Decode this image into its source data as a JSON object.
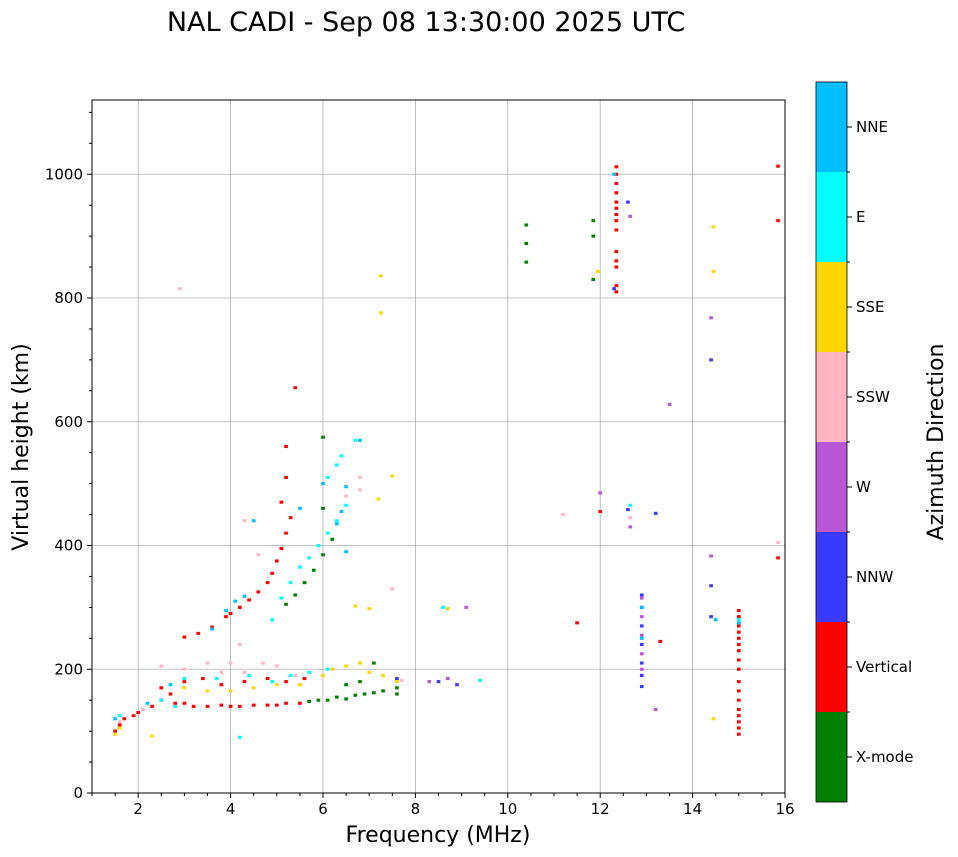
{
  "chart_data": {
    "type": "scatter",
    "title": "NAL CADI - Sep 08 13:30:00 2025 UTC",
    "xlabel": "Frequency (MHz)",
    "ylabel": "Virtual height (km)",
    "xlim": [
      1,
      16
    ],
    "ylim": [
      0,
      1120
    ],
    "xticks": [
      2,
      4,
      6,
      8,
      10,
      12,
      14,
      16
    ],
    "xtick_labels": [
      "2",
      "4",
      "6",
      "8",
      "10",
      "12",
      "14",
      "16"
    ],
    "yticks": [
      0,
      200,
      400,
      600,
      800,
      1000
    ],
    "ytick_labels": [
      "0",
      "200",
      "400",
      "600",
      "800",
      "1000"
    ],
    "grid": true,
    "colorbar": {
      "title": "Azimuth Direction",
      "categories": [
        "X-mode",
        "Vertical",
        "NNW",
        "W",
        "SSW",
        "SSE",
        "E",
        "NNE"
      ],
      "colors": [
        "#008000",
        "#ff0000",
        "#3a3aff",
        "#b857d6",
        "#ffb6c1",
        "#ffd700",
        "#00ffff",
        "#00bfff"
      ]
    },
    "point_size_data": {
      "freq_mhz": 0.08,
      "height_km": 5
    },
    "series": [
      {
        "name": "Vertical",
        "points": [
          [
            1.5,
            100
          ],
          [
            1.6,
            110
          ],
          [
            1.7,
            120
          ],
          [
            1.9,
            125
          ],
          [
            2.0,
            130
          ],
          [
            2.3,
            140
          ],
          [
            2.5,
            150
          ],
          [
            2.7,
            160
          ],
          [
            2.8,
            145
          ],
          [
            3.0,
            145
          ],
          [
            3.2,
            140
          ],
          [
            3.5,
            140
          ],
          [
            3.8,
            142
          ],
          [
            4.0,
            140
          ],
          [
            4.2,
            140
          ],
          [
            4.5,
            142
          ],
          [
            4.8,
            142
          ],
          [
            5.0,
            142
          ],
          [
            5.2,
            145
          ],
          [
            5.5,
            145
          ],
          [
            2.5,
            170
          ],
          [
            3.0,
            180
          ],
          [
            3.4,
            185
          ],
          [
            3.8,
            175
          ],
          [
            4.3,
            180
          ],
          [
            4.8,
            185
          ],
          [
            5.2,
            180
          ],
          [
            5.6,
            185
          ],
          [
            3.0,
            252
          ],
          [
            3.3,
            258
          ],
          [
            3.6,
            268
          ],
          [
            3.9,
            285
          ],
          [
            4.0,
            290
          ],
          [
            4.2,
            300
          ],
          [
            4.4,
            312
          ],
          [
            4.6,
            325
          ],
          [
            4.8,
            340
          ],
          [
            4.9,
            355
          ],
          [
            5.0,
            375
          ],
          [
            5.1,
            395
          ],
          [
            5.2,
            420
          ],
          [
            5.3,
            445
          ],
          [
            5.1,
            470
          ],
          [
            5.2,
            510
          ],
          [
            5.2,
            560
          ],
          [
            5.4,
            655
          ],
          [
            11.5,
            275
          ],
          [
            12.0,
            455
          ],
          [
            13.3,
            245
          ],
          [
            12.35,
            810
          ],
          [
            12.35,
            820
          ],
          [
            12.35,
            850
          ],
          [
            12.35,
            860
          ],
          [
            12.35,
            875
          ],
          [
            12.35,
            910
          ],
          [
            12.35,
            925
          ],
          [
            12.35,
            935
          ],
          [
            12.35,
            945
          ],
          [
            12.35,
            955
          ],
          [
            12.35,
            970
          ],
          [
            12.35,
            985
          ],
          [
            12.35,
            1000
          ],
          [
            12.35,
            1012
          ],
          [
            15.0,
            95
          ],
          [
            15.0,
            105
          ],
          [
            15.0,
            115
          ],
          [
            15.0,
            125
          ],
          [
            15.0,
            135
          ],
          [
            15.0,
            150
          ],
          [
            15.0,
            165
          ],
          [
            15.0,
            180
          ],
          [
            15.0,
            200
          ],
          [
            15.0,
            215
          ],
          [
            15.0,
            230
          ],
          [
            15.0,
            240
          ],
          [
            15.0,
            250
          ],
          [
            15.0,
            260
          ],
          [
            15.0,
            270
          ],
          [
            15.0,
            285
          ],
          [
            15.0,
            295
          ],
          [
            15.85,
            380
          ],
          [
            15.85,
            925
          ],
          [
            15.85,
            1013
          ]
        ]
      },
      {
        "name": "X-mode",
        "points": [
          [
            5.7,
            148
          ],
          [
            5.9,
            150
          ],
          [
            6.1,
            150
          ],
          [
            6.3,
            155
          ],
          [
            6.5,
            152
          ],
          [
            6.7,
            158
          ],
          [
            6.9,
            160
          ],
          [
            7.1,
            162
          ],
          [
            7.3,
            165
          ],
          [
            7.6,
            170
          ],
          [
            7.6,
            160
          ],
          [
            7.1,
            210
          ],
          [
            6.5,
            175
          ],
          [
            6.8,
            180
          ],
          [
            5.2,
            305
          ],
          [
            5.4,
            320
          ],
          [
            5.6,
            340
          ],
          [
            5.8,
            360
          ],
          [
            6.0,
            385
          ],
          [
            6.2,
            410
          ],
          [
            6.0,
            460
          ],
          [
            6.0,
            575
          ],
          [
            10.4,
            858
          ],
          [
            10.4,
            888
          ],
          [
            10.4,
            918
          ],
          [
            11.85,
            830
          ],
          [
            11.85,
            900
          ],
          [
            11.85,
            925
          ]
        ]
      },
      {
        "name": "NNW",
        "points": [
          [
            7.6,
            185
          ],
          [
            8.5,
            180
          ],
          [
            8.9,
            175
          ],
          [
            12.3,
            815
          ],
          [
            12.6,
            955
          ],
          [
            12.6,
            458
          ],
          [
            12.9,
            172
          ],
          [
            12.9,
            190
          ],
          [
            12.9,
            210
          ],
          [
            12.9,
            240
          ],
          [
            12.9,
            270
          ],
          [
            12.9,
            300
          ],
          [
            12.9,
            320
          ],
          [
            13.2,
            452
          ],
          [
            14.4,
            285
          ],
          [
            14.4,
            335
          ],
          [
            14.4,
            700
          ]
        ]
      },
      {
        "name": "W",
        "points": [
          [
            8.3,
            180
          ],
          [
            8.7,
            185
          ],
          [
            9.1,
            300
          ],
          [
            12.0,
            485
          ],
          [
            12.65,
            430
          ],
          [
            12.65,
            932
          ],
          [
            12.9,
            200
          ],
          [
            12.9,
            225
          ],
          [
            12.9,
            255
          ],
          [
            12.9,
            285
          ],
          [
            12.9,
            315
          ],
          [
            13.2,
            135
          ],
          [
            13.5,
            628
          ],
          [
            14.4,
            383
          ],
          [
            14.4,
            768
          ]
        ]
      },
      {
        "name": "SSW",
        "points": [
          [
            1.6,
            115
          ],
          [
            2.1,
            135
          ],
          [
            2.5,
            205
          ],
          [
            3.0,
            200
          ],
          [
            3.5,
            210
          ],
          [
            3.8,
            195
          ],
          [
            4.0,
            210
          ],
          [
            4.3,
            195
          ],
          [
            4.7,
            210
          ],
          [
            5.0,
            205
          ],
          [
            5.4,
            190
          ],
          [
            4.3,
            440
          ],
          [
            4.6,
            385
          ],
          [
            4.2,
            240
          ],
          [
            6.5,
            480
          ],
          [
            6.8,
            490
          ],
          [
            6.8,
            510
          ],
          [
            7.5,
            330
          ],
          [
            7.7,
            182
          ],
          [
            2.9,
            815
          ],
          [
            11.2,
            450
          ],
          [
            12.65,
            445
          ],
          [
            15.85,
            405
          ]
        ]
      },
      {
        "name": "SSE",
        "points": [
          [
            1.5,
            95
          ],
          [
            1.6,
            105
          ],
          [
            2.3,
            92
          ],
          [
            3.0,
            170
          ],
          [
            3.5,
            165
          ],
          [
            4.0,
            165
          ],
          [
            4.5,
            170
          ],
          [
            5.0,
            175
          ],
          [
            5.5,
            175
          ],
          [
            6.0,
            190
          ],
          [
            6.2,
            200
          ],
          [
            6.5,
            205
          ],
          [
            6.8,
            210
          ],
          [
            7.0,
            195
          ],
          [
            7.3,
            190
          ],
          [
            7.6,
            180
          ],
          [
            6.7,
            302
          ],
          [
            7.0,
            298
          ],
          [
            8.7,
            298
          ],
          [
            7.2,
            475
          ],
          [
            7.5,
            512
          ],
          [
            7.25,
            776
          ],
          [
            7.25,
            836
          ],
          [
            11.95,
            843
          ],
          [
            14.45,
            120
          ],
          [
            14.45,
            843
          ],
          [
            14.45,
            915
          ]
        ]
      },
      {
        "name": "E",
        "points": [
          [
            1.6,
            125
          ],
          [
            2.5,
            150
          ],
          [
            2.8,
            140
          ],
          [
            3.0,
            185
          ],
          [
            3.7,
            185
          ],
          [
            4.4,
            190
          ],
          [
            4.9,
            180
          ],
          [
            5.3,
            190
          ],
          [
            5.7,
            195
          ],
          [
            6.1,
            200
          ],
          [
            4.2,
            90
          ],
          [
            4.9,
            280
          ],
          [
            5.1,
            315
          ],
          [
            5.3,
            340
          ],
          [
            5.5,
            365
          ],
          [
            5.7,
            380
          ],
          [
            5.9,
            400
          ],
          [
            6.1,
            420
          ],
          [
            6.3,
            440
          ],
          [
            6.5,
            465
          ],
          [
            6.3,
            530
          ],
          [
            6.4,
            545
          ],
          [
            6.1,
            510
          ],
          [
            6.7,
            570
          ],
          [
            8.6,
            300
          ],
          [
            9.4,
            182
          ],
          [
            12.65,
            465
          ],
          [
            15.0,
            280
          ]
        ]
      },
      {
        "name": "NNE",
        "points": [
          [
            1.5,
            120
          ],
          [
            2.2,
            145
          ],
          [
            2.7,
            175
          ],
          [
            3.6,
            265
          ],
          [
            3.9,
            295
          ],
          [
            4.1,
            310
          ],
          [
            4.3,
            318
          ],
          [
            4.5,
            440
          ],
          [
            5.5,
            460
          ],
          [
            6.0,
            500
          ],
          [
            6.3,
            435
          ],
          [
            6.4,
            455
          ],
          [
            6.5,
            495
          ],
          [
            6.5,
            390
          ],
          [
            6.8,
            570
          ],
          [
            12.3,
            1000
          ],
          [
            12.9,
            300
          ],
          [
            12.9,
            250
          ],
          [
            14.5,
            280
          ],
          [
            15.0,
            275
          ]
        ]
      }
    ]
  }
}
